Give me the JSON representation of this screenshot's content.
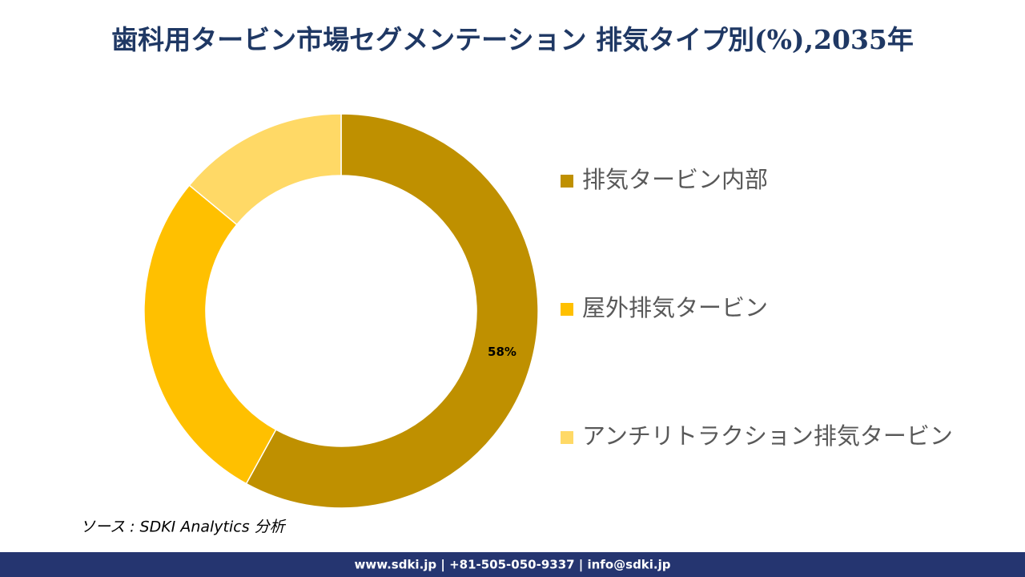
{
  "chart_data": {
    "type": "donut",
    "title": "歯科用タービン市場セグメンテーション 排気タイプ別(%),2035年",
    "categories": [
      "排気タービン内部",
      "屋外排気タービン",
      "アンチリトラクション排気タービン"
    ],
    "values": [
      58,
      28,
      14
    ],
    "value_labels": [
      "58%",
      null,
      null
    ],
    "colors": [
      "#bf9000",
      "#ffc000",
      "#ffd966"
    ],
    "legend": "right"
  },
  "source": "ソース : SDKI Analytics 分析",
  "footer": "www.sdki.jp | +81-505-050-9337 | info@sdki.jp"
}
